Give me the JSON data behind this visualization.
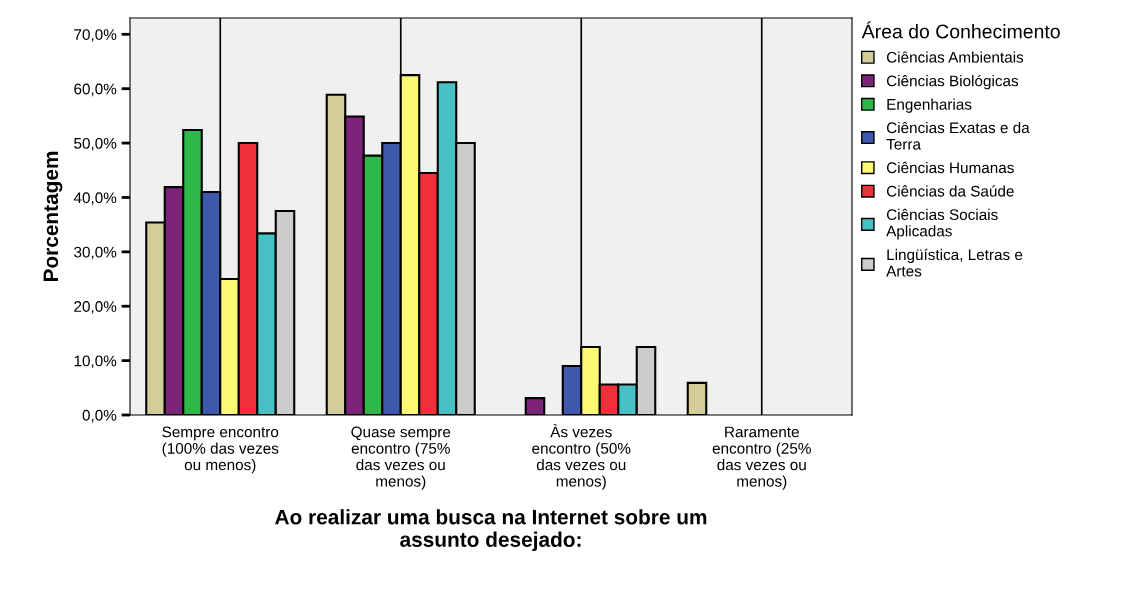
{
  "chart_data": {
    "type": "bar",
    "xlabel": "Ao realizar uma busca na Internet sobre um\nassunto desejado:",
    "ylabel": "Porcentagem",
    "legend_title": "Área do Conhecimento",
    "legend": "right",
    "grid": "x",
    "categories": [
      "Sempre encontro\n(100% das vezes\nou menos)",
      "Quase sempre\nencontro (75%\ndas vezes ou\nmenos)",
      "Às vezes\nencontro (50%\ndas vezes ou\nmenos)",
      "Raramente\nencontro (25%\ndas vezes ou\nmenos)"
    ],
    "ylim": [
      0,
      73
    ],
    "yticks": [
      {
        "value": 0,
        "label": "0,0%"
      },
      {
        "value": 10,
        "label": "10,0%"
      },
      {
        "value": 20,
        "label": "20,0%"
      },
      {
        "value": 30,
        "label": "30,0%"
      },
      {
        "value": 40,
        "label": "40,0%"
      },
      {
        "value": 50,
        "label": "50,0%"
      },
      {
        "value": 60,
        "label": "60,0%"
      },
      {
        "value": 70,
        "label": "70,0%"
      }
    ],
    "series": [
      {
        "name": "Ciências Ambientais",
        "color": "#d3ce97",
        "values": [
          35.4,
          58.9,
          0,
          5.9
        ]
      },
      {
        "name": "Ciências Biológicas",
        "color": "#7b2479",
        "values": [
          41.9,
          54.9,
          3.1,
          0
        ]
      },
      {
        "name": "Engenharias",
        "color": "#2eb848",
        "values": [
          52.4,
          47.7,
          0,
          0
        ]
      },
      {
        "name": "Ciências Exatas e da\nTerra",
        "color": "#3e58ac",
        "values": [
          41.0,
          50.0,
          9.0,
          0
        ]
      },
      {
        "name": "Ciências Humanas",
        "color": "#fbf873",
        "values": [
          25.0,
          62.5,
          12.5,
          0
        ]
      },
      {
        "name": "Ciências da Saúde",
        "color": "#ef3038",
        "values": [
          50.0,
          44.5,
          5.6,
          0
        ]
      },
      {
        "name": "Ciências Sociais\nAplicadas",
        "color": "#48c1c6",
        "values": [
          33.4,
          61.2,
          5.6,
          0
        ]
      },
      {
        "name": "Lingüística, Letras e\nArtes",
        "color": "#cccccc",
        "values": [
          37.5,
          50.0,
          12.5,
          0
        ]
      }
    ]
  }
}
